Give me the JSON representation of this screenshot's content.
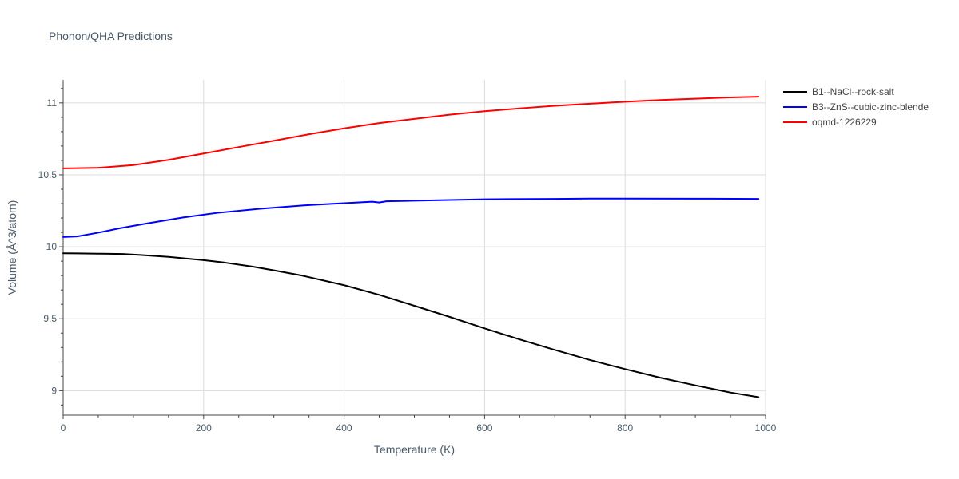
{
  "chart_data": {
    "type": "line",
    "title": "Phonon/QHA Predictions",
    "xlabel": "Temperature (K)",
    "ylabel": "Volume (Å^3/atom)",
    "xlim": [
      0,
      1000
    ],
    "ylim": [
      8.83,
      11.16
    ],
    "xticks": [
      0,
      200,
      400,
      600,
      800,
      1000
    ],
    "xtick_labels": [
      "0",
      "200",
      "400",
      "600",
      "800",
      "1000"
    ],
    "yticks": [
      9,
      9.5,
      10,
      10.5,
      11
    ],
    "ytick_labels": [
      "9",
      "9.5",
      "10",
      "10.5",
      "11"
    ],
    "grid": true,
    "legend_position": "top-right outside",
    "series": [
      {
        "name": "B1--NaCl--rock-salt",
        "color": "#000000",
        "x": [
          0,
          20,
          50,
          85,
          110,
          150,
          200,
          230,
          270,
          300,
          340,
          400,
          450,
          500,
          550,
          600,
          650,
          700,
          750,
          800,
          850,
          900,
          950,
          990
        ],
        "y": [
          9.955,
          9.954,
          9.952,
          9.95,
          9.943,
          9.93,
          9.907,
          9.89,
          9.862,
          9.836,
          9.8,
          9.733,
          9.666,
          9.59,
          9.513,
          9.433,
          9.356,
          9.283,
          9.213,
          9.15,
          9.09,
          9.037,
          8.987,
          8.955
        ]
      },
      {
        "name": "B3--ZnS--cubic-zinc-blende",
        "color": "#0000ff",
        "x": [
          0,
          20,
          50,
          80,
          120,
          170,
          220,
          280,
          350,
          400,
          440,
          450,
          460,
          500,
          550,
          600,
          700,
          750,
          800,
          900,
          990
        ],
        "y": [
          10.068,
          10.072,
          10.098,
          10.128,
          10.163,
          10.203,
          10.236,
          10.264,
          10.29,
          10.303,
          10.313,
          10.308,
          10.316,
          10.32,
          10.325,
          10.33,
          10.333,
          10.335,
          10.335,
          10.334,
          10.333
        ]
      },
      {
        "name": "oqmd-1226229",
        "color": "#ff0000",
        "x": [
          0,
          20,
          50,
          100,
          150,
          200,
          250,
          300,
          350,
          400,
          450,
          500,
          550,
          600,
          650,
          700,
          750,
          800,
          850,
          900,
          950,
          990
        ],
        "y": [
          10.545,
          10.546,
          10.549,
          10.568,
          10.604,
          10.648,
          10.693,
          10.737,
          10.782,
          10.823,
          10.86,
          10.889,
          10.918,
          10.942,
          10.962,
          10.98,
          10.994,
          11.008,
          11.02,
          11.029,
          11.038,
          11.043
        ]
      }
    ]
  }
}
